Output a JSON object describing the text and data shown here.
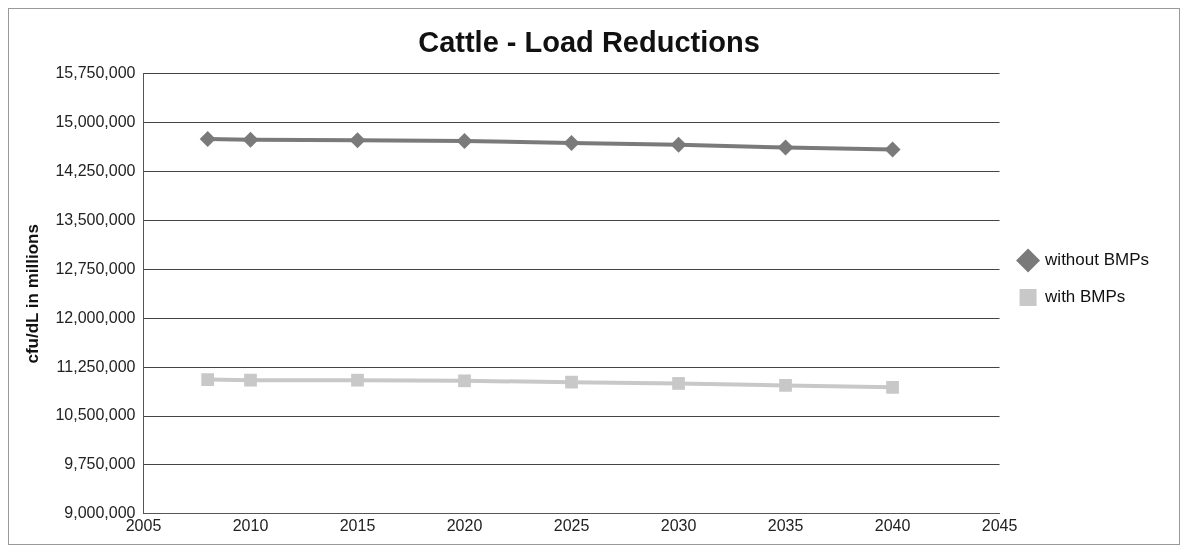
{
  "chart_data": {
    "type": "line",
    "title": "Cattle - Load Reductions",
    "ylabel": "cfu/dL in millions",
    "x": [
      2008,
      2010,
      2015,
      2020,
      2025,
      2030,
      2035,
      2040
    ],
    "series": [
      {
        "name": "without BMPs",
        "color": "#7a7a7a",
        "marker": "diamond",
        "values": [
          14750000,
          14740000,
          14730000,
          14720000,
          14690000,
          14660000,
          14620000,
          14590000
        ]
      },
      {
        "name": "with BMPs",
        "color": "#c8c8c8",
        "marker": "square",
        "values": [
          11060000,
          11050000,
          11050000,
          11040000,
          11020000,
          11000000,
          10970000,
          10940000
        ]
      }
    ],
    "xlim": [
      2005,
      2045
    ],
    "xticks": [
      2005,
      2010,
      2015,
      2020,
      2025,
      2030,
      2035,
      2040,
      2045
    ],
    "ylim": [
      9000000,
      15750000
    ],
    "yticks": [
      {
        "value": 9000000,
        "label": "9,000,000"
      },
      {
        "value": 9750000,
        "label": "9,750,000"
      },
      {
        "value": 10500000,
        "label": "10,500,000"
      },
      {
        "value": 11250000,
        "label": "11,250,000"
      },
      {
        "value": 12000000,
        "label": "12,000,000"
      },
      {
        "value": 12750000,
        "label": "12,750,000"
      },
      {
        "value": 13500000,
        "label": "13,500,000"
      },
      {
        "value": 14250000,
        "label": "14,250,000"
      },
      {
        "value": 15000000,
        "label": "15,000,000"
      },
      {
        "value": 15750000,
        "label": "15,750,000"
      }
    ],
    "grid": "y",
    "legend": "right"
  }
}
